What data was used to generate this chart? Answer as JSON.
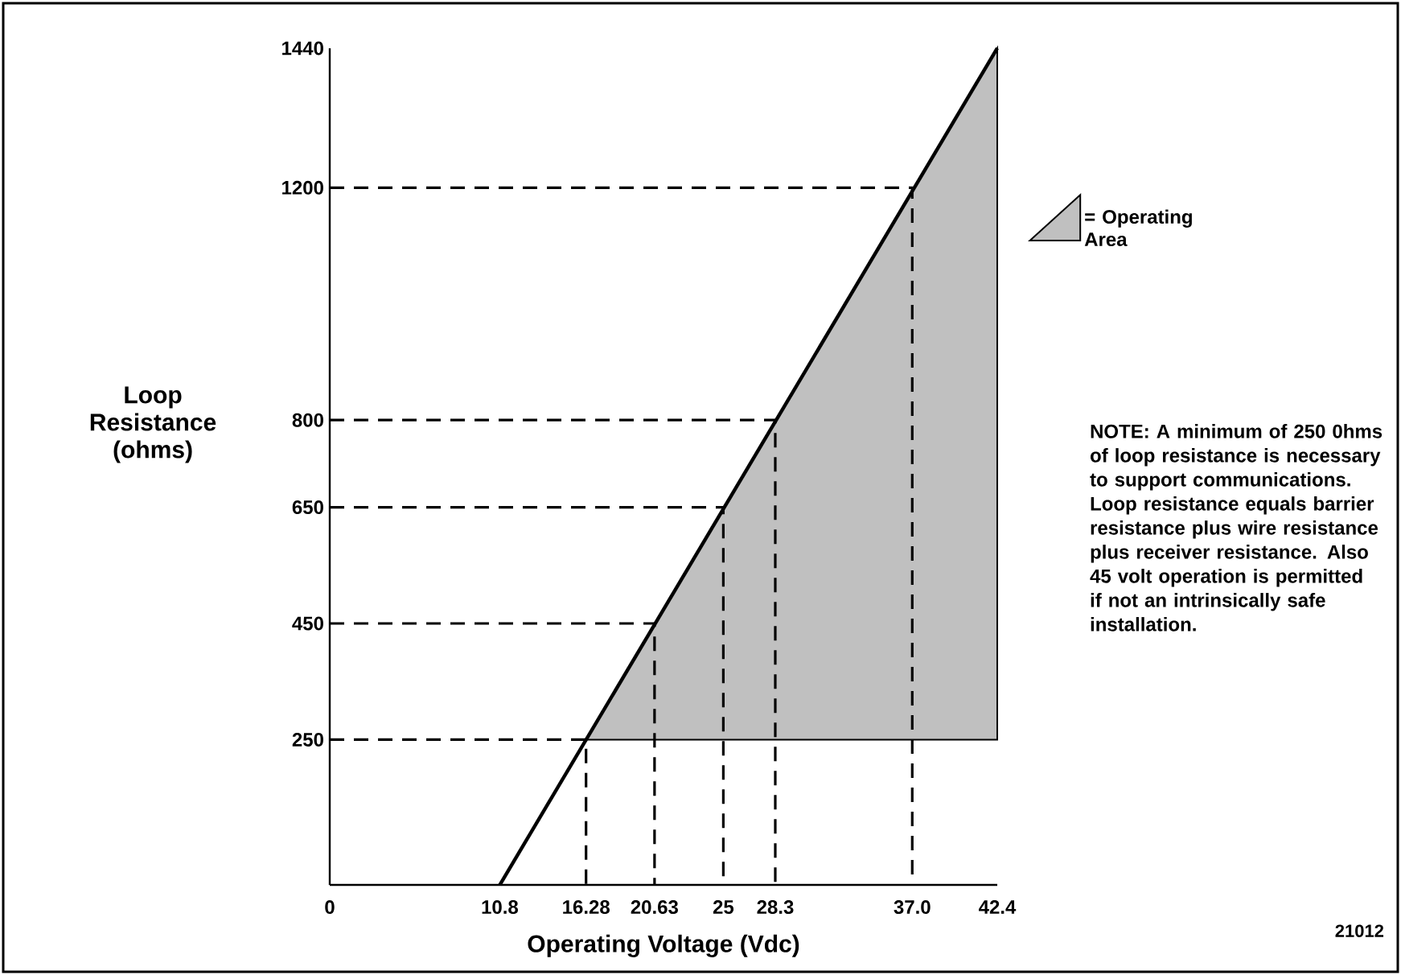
{
  "chart_data": {
    "type": "line",
    "xlabel": "Operating Voltage (Vdc)",
    "ylabel": "Loop Resistance (ohms)",
    "xlim": [
      0,
      42.4
    ],
    "ylim": [
      0,
      1440
    ],
    "xticks": [
      0,
      10.8,
      16.28,
      20.63,
      25,
      28.3,
      {
        "value": 37,
        "label": "37.0"
      },
      42.4
    ],
    "yticks": [
      250,
      450,
      650,
      800,
      1200,
      1440
    ],
    "grid": false,
    "legend": "right",
    "marker": "none",
    "line_style": "solid",
    "series": [
      {
        "type": "area",
        "name": "= Operating Area",
        "x": [
          16.28,
          42.4,
          42.4
        ],
        "values": [
          250,
          1440,
          250
        ],
        "color": "#c0c0c0"
      },
      {
        "x": [
          10.8,
          42.4
        ],
        "values": [
          0,
          1440
        ],
        "color": "#000000"
      },
      {
        "line_style": "dashed",
        "x": [
          0,
          16.28,
          16.28
        ],
        "values": [
          250,
          250,
          0
        ],
        "color": "#000000"
      },
      {
        "line_style": "dashed",
        "x": [
          0,
          20.63,
          20.63
        ],
        "values": [
          450,
          450,
          0
        ],
        "color": "#000000"
      },
      {
        "line_style": "dashed",
        "x": [
          0,
          25,
          25
        ],
        "values": [
          650,
          650,
          0
        ],
        "color": "#000000"
      },
      {
        "line_style": "dashed",
        "x": [
          0,
          28.3,
          28.3
        ],
        "values": [
          800,
          800,
          0
        ],
        "color": "#000000"
      },
      {
        "line_style": "dashed",
        "x": [
          0,
          37,
          37
        ],
        "values": [
          1200,
          1200,
          0
        ],
        "color": "#000000"
      }
    ],
    "annotations": [
      "NOTE: A minimum of 250 0hms of loop resistance is necessary to support communications. Loop resistance equals barrier resistance plus wire resistance plus receiver resistance. Also 45 volt operation is permitted if not an intrinsically safe installation.",
      "21012"
    ]
  }
}
